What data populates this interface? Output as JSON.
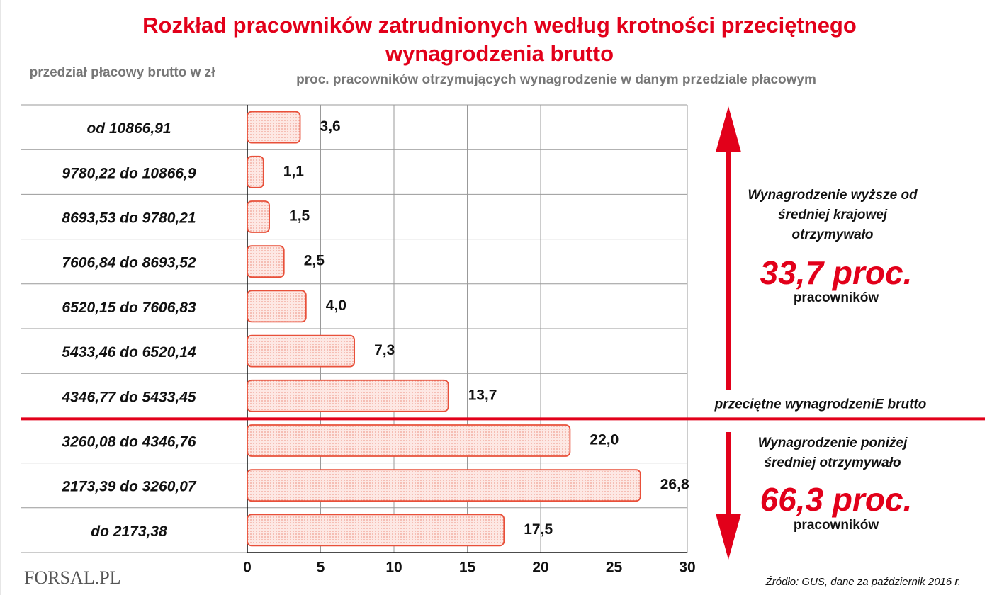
{
  "chart_data": {
    "type": "bar",
    "orientation": "horizontal",
    "title": "Rozkład pracowników zatrudnionych według krotności przeciętnego wynagrodzenia brutto",
    "y_axis_label": "przedział płacowy brutto w zł",
    "x_axis_label": "proc. pracowników otrzymujących wynagrodzenie w danym przedziale płacowym",
    "categories": [
      "od 10866,91",
      "9780,22 do 10866,9",
      "8693,53 do 9780,21",
      "7606,84 do 8693,52",
      "6520,15 do 7606,83",
      "5433,46 do 6520,14",
      "4346,77 do 5433,45",
      "3260,08 do 4346,76",
      "2173,39 do 3260,07",
      "do 2173,38"
    ],
    "values": [
      3.6,
      1.1,
      1.5,
      2.5,
      4.0,
      7.3,
      13.7,
      22.0,
      26.8,
      17.5
    ],
    "value_labels": [
      "3,6",
      "1,1",
      "1,5",
      "2,5",
      "4,0",
      "7,3",
      "13,7",
      "22,0",
      "26,8",
      "17,5"
    ],
    "color": "#e8503a",
    "xlim": [
      0,
      30
    ],
    "xticks": [
      0,
      5,
      10,
      15,
      20,
      25,
      30
    ],
    "grid": true,
    "annotations": {
      "average_line": "przeciętne wynagrodzeniE brutto",
      "above_note": "Wynagrodzenie wyższe od średniej krajowej otrzymywało",
      "above_share": "33,7 proc.",
      "above_unit": "pracowników",
      "below_note": "Wynagrodzenie poniżej średniej otrzymywało",
      "below_share": "66,3 proc.",
      "below_unit": "pracowników",
      "source": "Źródło: GUS, dane za październik 2016 r.",
      "logo": "FORSAL.PL"
    }
  }
}
